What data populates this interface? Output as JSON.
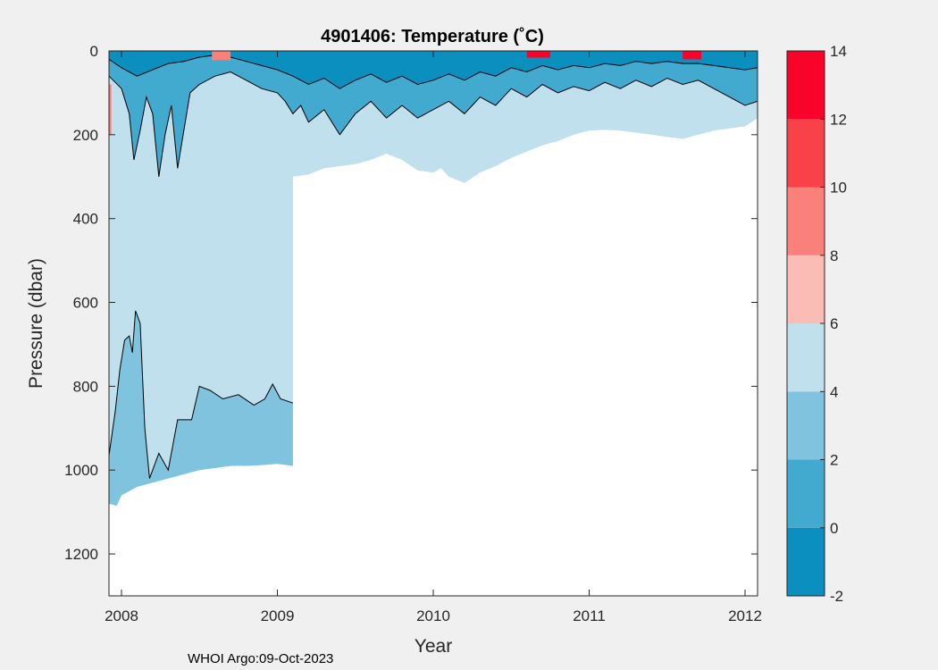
{
  "chart_data": {
    "type": "heatmap",
    "title": "4901406:  Temperature (˚C)",
    "xlabel": "Year",
    "ylabel": "Pressure (dbar)",
    "xlim": [
      2007.92,
      2012.08
    ],
    "ylim": [
      0,
      1300
    ],
    "y_reversed": true,
    "x_ticks": [
      2008,
      2009,
      2010,
      2011,
      2012
    ],
    "x_tick_labels": [
      "2008",
      "2009",
      "2010",
      "2011",
      "2012"
    ],
    "y_ticks": [
      0,
      200,
      400,
      600,
      800,
      1000,
      1200
    ],
    "y_tick_labels": [
      "0",
      "200",
      "400",
      "600",
      "800",
      "1000",
      "1200"
    ],
    "colorbar": {
      "levels": [
        -2,
        0,
        2,
        4,
        6,
        8,
        10,
        12,
        14
      ],
      "tick_labels": [
        "-2",
        "0",
        "2",
        "4",
        "6",
        "8",
        "10",
        "12",
        "14"
      ],
      "colors": [
        "#0a8fbf",
        "#42a9cf",
        "#80c3de",
        "#c0e0ee",
        "#fcbcb6",
        "#fa807c",
        "#f9414a",
        "#f9032a"
      ]
    },
    "bottom_profile": [
      [
        2007.92,
        1080
      ],
      [
        2007.97,
        1085
      ],
      [
        2008.0,
        1060
      ],
      [
        2008.05,
        1050
      ],
      [
        2008.1,
        1040
      ],
      [
        2008.2,
        1030
      ],
      [
        2008.3,
        1020
      ],
      [
        2008.4,
        1010
      ],
      [
        2008.5,
        1000
      ],
      [
        2008.6,
        995
      ],
      [
        2008.7,
        990
      ],
      [
        2008.8,
        990
      ],
      [
        2008.9,
        988
      ],
      [
        2009.0,
        985
      ],
      [
        2009.1,
        990
      ],
      [
        2009.1,
        300
      ],
      [
        2009.2,
        295
      ],
      [
        2009.3,
        280
      ],
      [
        2009.4,
        275
      ],
      [
        2009.5,
        270
      ],
      [
        2009.6,
        260
      ],
      [
        2009.7,
        245
      ],
      [
        2009.8,
        260
      ],
      [
        2009.9,
        285
      ],
      [
        2010.0,
        290
      ],
      [
        2010.05,
        280
      ],
      [
        2010.1,
        300
      ],
      [
        2010.2,
        315
      ],
      [
        2010.3,
        290
      ],
      [
        2010.4,
        275
      ],
      [
        2010.5,
        255
      ],
      [
        2010.6,
        240
      ],
      [
        2010.7,
        225
      ],
      [
        2010.8,
        215
      ],
      [
        2010.9,
        200
      ],
      [
        2011.0,
        190
      ],
      [
        2011.1,
        188
      ],
      [
        2011.2,
        190
      ],
      [
        2011.3,
        195
      ],
      [
        2011.4,
        200
      ],
      [
        2011.5,
        205
      ],
      [
        2011.6,
        210
      ],
      [
        2011.7,
        200
      ],
      [
        2011.8,
        190
      ],
      [
        2011.9,
        185
      ],
      [
        2012.0,
        180
      ],
      [
        2012.08,
        160
      ]
    ],
    "bands": [
      {
        "level": 2,
        "profile": [
          [
            2007.92,
            965
          ],
          [
            2007.96,
            860
          ],
          [
            2007.99,
            760
          ],
          [
            2008.02,
            690
          ],
          [
            2008.05,
            680
          ],
          [
            2008.07,
            720
          ],
          [
            2008.09,
            620
          ],
          [
            2008.12,
            650
          ],
          [
            2008.15,
            900
          ],
          [
            2008.18,
            1020
          ],
          [
            2008.24,
            960
          ],
          [
            2008.3,
            1000
          ],
          [
            2008.36,
            880
          ],
          [
            2008.45,
            880
          ],
          [
            2008.5,
            800
          ],
          [
            2008.57,
            810
          ],
          [
            2008.65,
            830
          ],
          [
            2008.75,
            820
          ],
          [
            2008.85,
            845
          ],
          [
            2008.92,
            830
          ],
          [
            2008.97,
            795
          ],
          [
            2009.02,
            830
          ],
          [
            2009.06,
            835
          ],
          [
            2009.1,
            840
          ]
        ]
      },
      {
        "level": 0,
        "profile": [
          [
            2007.92,
            60
          ],
          [
            2008.0,
            90
          ],
          [
            2008.05,
            150
          ],
          [
            2008.08,
            260
          ],
          [
            2008.12,
            190
          ],
          [
            2008.16,
            110
          ],
          [
            2008.2,
            150
          ],
          [
            2008.24,
            300
          ],
          [
            2008.28,
            200
          ],
          [
            2008.32,
            130
          ],
          [
            2008.36,
            280
          ],
          [
            2008.4,
            190
          ],
          [
            2008.44,
            100
          ],
          [
            2008.5,
            80
          ],
          [
            2008.6,
            60
          ],
          [
            2008.7,
            50
          ],
          [
            2008.8,
            70
          ],
          [
            2008.9,
            90
          ],
          [
            2009.0,
            100
          ],
          [
            2009.05,
            120
          ],
          [
            2009.1,
            150
          ],
          [
            2009.15,
            130
          ],
          [
            2009.2,
            170
          ],
          [
            2009.3,
            140
          ],
          [
            2009.4,
            200
          ],
          [
            2009.5,
            150
          ],
          [
            2009.6,
            120
          ],
          [
            2009.7,
            160
          ],
          [
            2009.8,
            130
          ],
          [
            2009.9,
            160
          ],
          [
            2010.0,
            140
          ],
          [
            2010.1,
            120
          ],
          [
            2010.2,
            150
          ],
          [
            2010.3,
            110
          ],
          [
            2010.4,
            130
          ],
          [
            2010.5,
            90
          ],
          [
            2010.6,
            110
          ],
          [
            2010.7,
            80
          ],
          [
            2010.8,
            100
          ],
          [
            2010.9,
            85
          ],
          [
            2011.0,
            95
          ],
          [
            2011.1,
            75
          ],
          [
            2011.2,
            90
          ],
          [
            2011.3,
            70
          ],
          [
            2011.4,
            85
          ],
          [
            2011.5,
            65
          ],
          [
            2011.6,
            80
          ],
          [
            2011.7,
            70
          ],
          [
            2011.8,
            90
          ],
          [
            2011.9,
            110
          ],
          [
            2012.0,
            130
          ],
          [
            2012.08,
            120
          ]
        ]
      },
      {
        "level": -2,
        "profile": [
          [
            2007.92,
            20
          ],
          [
            2008.0,
            40
          ],
          [
            2008.1,
            60
          ],
          [
            2008.2,
            45
          ],
          [
            2008.3,
            30
          ],
          [
            2008.4,
            25
          ],
          [
            2008.5,
            15
          ],
          [
            2008.6,
            10
          ],
          [
            2008.7,
            15
          ],
          [
            2008.8,
            25
          ],
          [
            2008.9,
            35
          ],
          [
            2009.0,
            45
          ],
          [
            2009.1,
            60
          ],
          [
            2009.2,
            80
          ],
          [
            2009.3,
            65
          ],
          [
            2009.4,
            90
          ],
          [
            2009.5,
            70
          ],
          [
            2009.6,
            55
          ],
          [
            2009.7,
            75
          ],
          [
            2009.8,
            60
          ],
          [
            2009.9,
            80
          ],
          [
            2010.0,
            70
          ],
          [
            2010.1,
            55
          ],
          [
            2010.2,
            70
          ],
          [
            2010.3,
            50
          ],
          [
            2010.4,
            60
          ],
          [
            2010.5,
            40
          ],
          [
            2010.6,
            50
          ],
          [
            2010.7,
            35
          ],
          [
            2010.8,
            45
          ],
          [
            2010.9,
            35
          ],
          [
            2011.0,
            40
          ],
          [
            2011.1,
            30
          ],
          [
            2011.2,
            35
          ],
          [
            2011.3,
            25
          ],
          [
            2011.4,
            30
          ],
          [
            2011.5,
            25
          ],
          [
            2011.6,
            30
          ],
          [
            2011.7,
            30
          ],
          [
            2011.8,
            35
          ],
          [
            2011.9,
            40
          ],
          [
            2012.0,
            45
          ],
          [
            2012.08,
            40
          ]
        ]
      }
    ],
    "warm_patches": [
      {
        "level": 8,
        "x": [
          2008.58,
          2008.7
        ],
        "y": [
          0,
          22
        ]
      },
      {
        "level": 12,
        "x": [
          2010.6,
          2010.75
        ],
        "y": [
          0,
          16
        ]
      },
      {
        "level": 12,
        "x": [
          2011.6,
          2011.72
        ],
        "y": [
          0,
          20
        ]
      },
      {
        "level": 8,
        "x": [
          2007.92,
          2007.935
        ],
        "y": [
          80,
          200
        ]
      }
    ]
  },
  "footer": {
    "credit": "WHOI Argo:09-Oct-2023"
  }
}
